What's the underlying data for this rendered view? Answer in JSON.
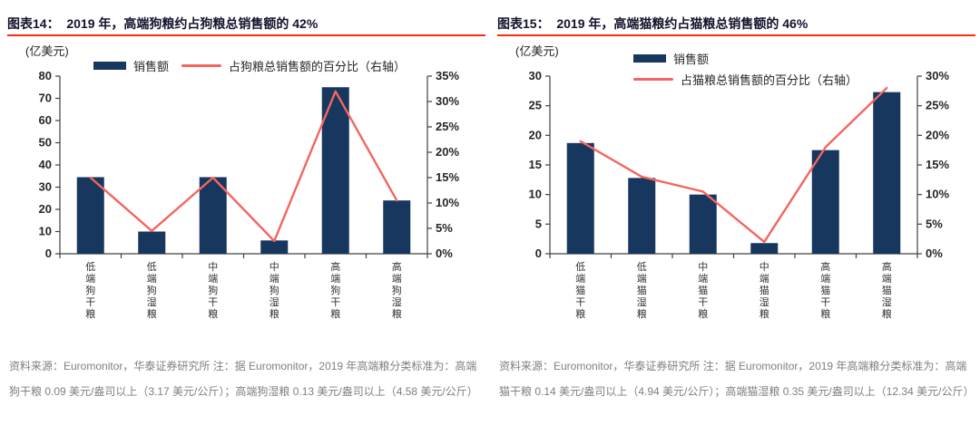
{
  "colors": {
    "bar": "#17375e",
    "line": "#f4655f",
    "rule": "#fb2b16",
    "title": "#13132b",
    "axis": "#404040",
    "footnote": "#7f7f7f"
  },
  "chart_data": [
    {
      "type": "bar+line",
      "title": "图表14：  2019 年，高端狗粮约占狗粮总销售额的 42%",
      "unit": "(亿美元)",
      "categories": [
        "低端狗干粮",
        "低端狗湿粮",
        "中端狗干粮",
        "中端狗湿粮",
        "高端狗干粮",
        "高端狗湿粮"
      ],
      "series": [
        {
          "name": "销售额",
          "type": "bar",
          "axis": "left",
          "values": [
            34.5,
            10,
            34.5,
            6,
            75,
            24
          ]
        },
        {
          "name": "占狗粮总销售额的百分比（右轴）",
          "type": "line",
          "axis": "right",
          "values": [
            15,
            4.5,
            15,
            2.5,
            32,
            10.5
          ]
        }
      ],
      "left_axis": {
        "min": 0,
        "max": 80,
        "step": 10
      },
      "right_axis": {
        "min": 0,
        "max": 35,
        "step": 5,
        "suffix": "%"
      },
      "legend_layout": "inline",
      "grid": false,
      "footnote": "资料来源：Euromonitor，华泰证券研究所 注：据 Euromonitor，2019 年高端粮分类标准为：高端狗干粮 0.09 美元/盎司以上（3.17 美元/公斤）；高端狗湿粮 0.13 美元/盎司以上（4.58 美元/公斤）"
    },
    {
      "type": "bar+line",
      "title": "图表15：  2019 年，高端猫粮约占猫粮总销售额的 46%",
      "unit": "(亿美元)",
      "categories": [
        "低端猫干粮",
        "低端猫湿粮",
        "中端猫干粮",
        "中端猫湿粮",
        "高端猫干粮",
        "高端猫湿粮"
      ],
      "series": [
        {
          "name": "销售额",
          "type": "bar",
          "axis": "left",
          "values": [
            18.7,
            12.8,
            10,
            1.8,
            17.5,
            27.3
          ]
        },
        {
          "name": "占猫粮总销售额的百分比（右轴）",
          "type": "line",
          "axis": "right",
          "values": [
            19,
            13,
            10.5,
            2,
            18,
            28
          ]
        }
      ],
      "left_axis": {
        "min": 0,
        "max": 30,
        "step": 5
      },
      "right_axis": {
        "min": 0,
        "max": 30,
        "step": 5,
        "suffix": "%"
      },
      "legend_layout": "stacked",
      "grid": false,
      "footnote": "资料来源：Euromonitor，华泰证券研究所 注：据 Euromonitor，2019 年高端粮分类标准为：高端猫干粮 0.14 美元/盎司以上（4.94 美元/公斤）；高端猫湿粮 0.35 美元/盎司以上（12.34 美元/公斤）"
    }
  ]
}
